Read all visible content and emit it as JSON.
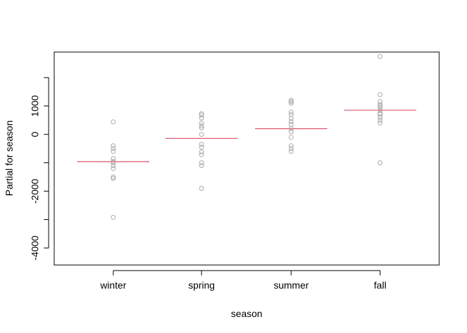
{
  "chart_data": {
    "type": "scatter",
    "xlabel": "season",
    "ylabel": "Partial for season",
    "categories": [
      "winter",
      "spring",
      "summer",
      "fall"
    ],
    "yticks": [
      -4000,
      -2000,
      0,
      1000
    ],
    "ylim": [
      -4600,
      2900
    ],
    "grid": false,
    "colors": {
      "points": "#a9a9a9",
      "fit": "#df536b",
      "axis": "#000000"
    },
    "fitted": [
      -960,
      -140,
      200,
      850
    ],
    "points": [
      [
        440,
        -400,
        -500,
        -600,
        -850,
        -950,
        -1000,
        -1100,
        -1200,
        -1500,
        -1550,
        -2920
      ],
      [
        730,
        680,
        580,
        400,
        300,
        230,
        0,
        -350,
        -450,
        -620,
        -720,
        -1000,
        -1100,
        -1900
      ],
      [
        1200,
        1150,
        1100,
        780,
        700,
        560,
        450,
        350,
        200,
        100,
        -100,
        -400,
        -500,
        -600
      ],
      [
        2740,
        1400,
        1150,
        1050,
        1000,
        950,
        850,
        750,
        700,
        600,
        500,
        400,
        -1000
      ]
    ]
  }
}
